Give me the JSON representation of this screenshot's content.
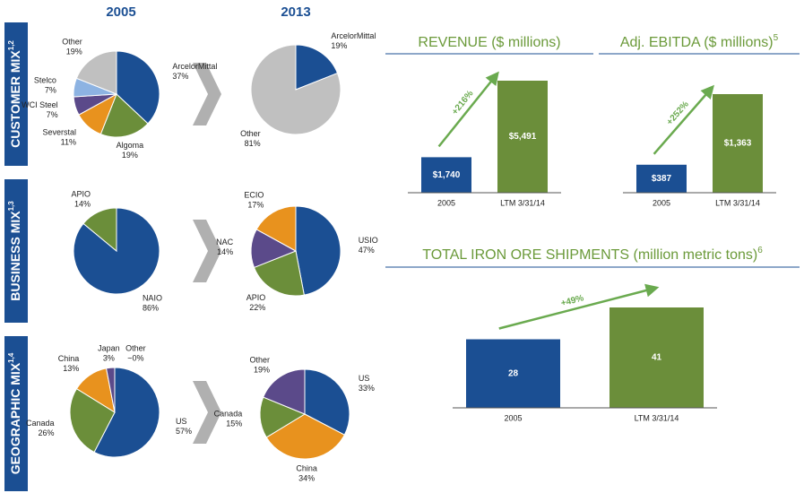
{
  "columns": [
    "2005",
    "2013"
  ],
  "sections": [
    {
      "label": "CUSTOMER MIX",
      "footnote": "1,2"
    },
    {
      "label": "BUSINESS MIX",
      "footnote": "1,3"
    },
    {
      "label": "GEOGRAPHIC MIX",
      "footnote": "1,4"
    }
  ],
  "chart_data": [
    {
      "type": "pie",
      "categories": [
        "ArcelorMittal",
        "Algoma",
        "Severstal",
        "WCI Steel",
        "Stelco",
        "Other"
      ],
      "values": [
        37,
        19,
        11,
        7,
        7,
        19
      ],
      "value_labels": [
        "37%",
        "19%",
        "11%",
        "7%",
        "7%",
        "19%"
      ],
      "colors": [
        "#1b4f93",
        "#6b8e3a",
        "#e8921e",
        "#5b4a8a",
        "#8db3e2",
        "#c0c0c0"
      ]
    },
    {
      "type": "pie",
      "categories": [
        "ArcelorMittal",
        "Other"
      ],
      "values": [
        19,
        81
      ],
      "value_labels": [
        "19%",
        "81%"
      ],
      "colors": [
        "#1b4f93",
        "#c0c0c0"
      ]
    },
    {
      "type": "pie",
      "categories": [
        "NAIO",
        "APIO"
      ],
      "values": [
        86,
        14
      ],
      "value_labels": [
        "86%",
        "14%"
      ],
      "colors": [
        "#1b4f93",
        "#6b8e3a"
      ]
    },
    {
      "type": "pie",
      "categories": [
        "USIO",
        "APIO",
        "NAC",
        "ECIO"
      ],
      "values": [
        47,
        22,
        14,
        17
      ],
      "value_labels": [
        "47%",
        "22%",
        "14%",
        "17%"
      ],
      "colors": [
        "#1b4f93",
        "#6b8e3a",
        "#5b4a8a",
        "#e8921e"
      ]
    },
    {
      "type": "pie",
      "categories": [
        "US",
        "Canada",
        "China",
        "Japan",
        "Other"
      ],
      "values": [
        57,
        26,
        13,
        3,
        0
      ],
      "value_labels": [
        "57%",
        "26%",
        "13%",
        "3%",
        "~0%"
      ],
      "colors": [
        "#1b4f93",
        "#6b8e3a",
        "#e8921e",
        "#5b4a8a",
        "#c0c0c0"
      ]
    },
    {
      "type": "pie",
      "categories": [
        "US",
        "China",
        "Canada",
        "Other"
      ],
      "values": [
        33,
        34,
        15,
        19
      ],
      "value_labels": [
        "33%",
        "34%",
        "15%",
        "19%"
      ],
      "colors": [
        "#1b4f93",
        "#e8921e",
        "#6b8e3a",
        "#5b4a8a"
      ]
    },
    {
      "type": "bar",
      "title": "REVENUE ($ millions)",
      "categories": [
        "2005",
        "LTM 3/31/14"
      ],
      "values": [
        1740,
        5491
      ],
      "value_labels": [
        "$1,740",
        "$5,491"
      ],
      "colors": [
        "#1b4f93",
        "#6b8e3a"
      ],
      "annotation": "+216%"
    },
    {
      "type": "bar",
      "title": "Adj. EBITDA ($ millions)",
      "title_footnote": "5",
      "categories": [
        "2005",
        "LTM 3/31/14"
      ],
      "values": [
        387,
        1363
      ],
      "value_labels": [
        "$387",
        "$1,363"
      ],
      "colors": [
        "#1b4f93",
        "#6b8e3a"
      ],
      "annotation": "+252%"
    },
    {
      "type": "bar",
      "title": "TOTAL IRON ORE SHIPMENTS (million metric tons)",
      "title_footnote": "6",
      "categories": [
        "2005",
        "LTM 3/31/14"
      ],
      "values": [
        28,
        41
      ],
      "colors": [
        "#1b4f93",
        "#6b8e3a"
      ],
      "annotation": "+49%"
    }
  ]
}
